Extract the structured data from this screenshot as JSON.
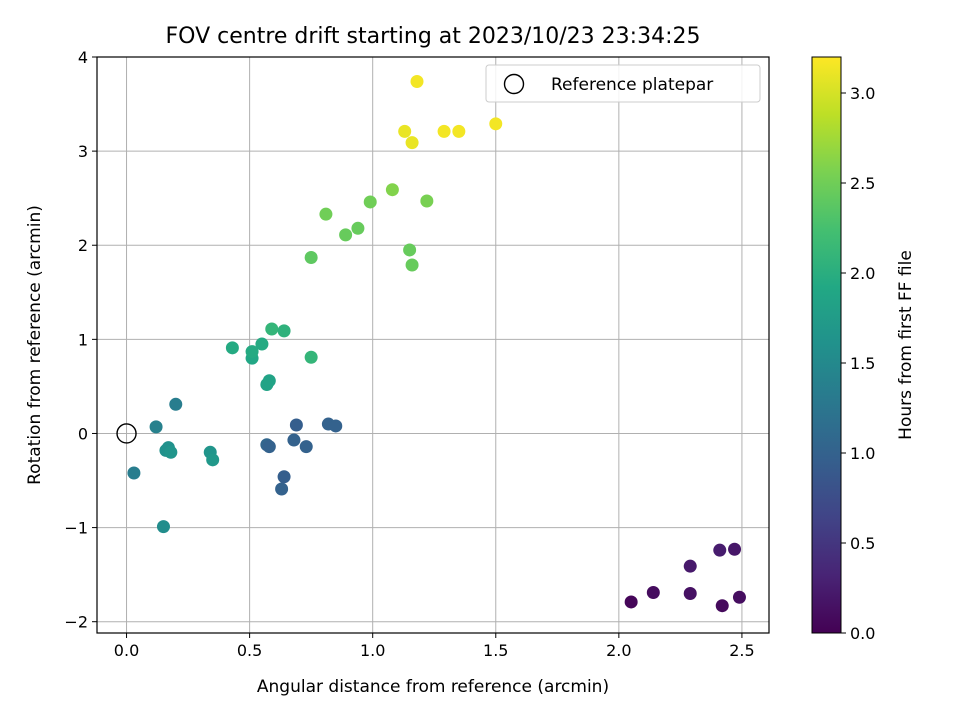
{
  "chart_data": {
    "type": "scatter",
    "title": "FOV centre drift starting at 2023/10/23 23:34:25",
    "xlabel": "Angular distance from reference (arcmin)",
    "ylabel": "Rotation from reference (arcmin)",
    "xlim": [
      -0.12,
      2.61
    ],
    "ylim": [
      -2.12,
      4.0
    ],
    "x_ticks": [
      0.0,
      0.5,
      1.0,
      1.5,
      2.0,
      2.5
    ],
    "x_tick_labels": [
      "0.0",
      "0.5",
      "1.0",
      "1.5",
      "2.0",
      "2.5"
    ],
    "y_ticks": [
      -2,
      -1,
      0,
      1,
      2,
      3,
      4
    ],
    "y_tick_labels": [
      "−2",
      "−1",
      "0",
      "1",
      "2",
      "3",
      "4"
    ],
    "grid": true,
    "legend": {
      "position": "top-right",
      "entries": [
        "Reference platepar"
      ]
    },
    "reference_point": {
      "x": 0.0,
      "y": 0.0
    },
    "colorbar": {
      "label": "Hours from first FF file",
      "range": [
        0.0,
        3.2
      ],
      "ticks": [
        0.0,
        0.5,
        1.0,
        1.5,
        2.0,
        2.5,
        3.0
      ],
      "tick_labels": [
        "0.0",
        "0.5",
        "1.0",
        "1.5",
        "2.0",
        "2.5",
        "3.0"
      ],
      "colormap": "viridis"
    },
    "points": [
      {
        "x": 2.05,
        "y": -1.79,
        "c": 0.05
      },
      {
        "x": 2.14,
        "y": -1.69,
        "c": 0.1
      },
      {
        "x": 2.29,
        "y": -1.7,
        "c": 0.15
      },
      {
        "x": 2.42,
        "y": -1.83,
        "c": 0.08
      },
      {
        "x": 2.49,
        "y": -1.74,
        "c": 0.12
      },
      {
        "x": 2.29,
        "y": -1.41,
        "c": 0.22
      },
      {
        "x": 2.41,
        "y": -1.24,
        "c": 0.25
      },
      {
        "x": 2.47,
        "y": -1.23,
        "c": 0.2
      },
      {
        "x": 0.63,
        "y": -0.59,
        "c": 1.0
      },
      {
        "x": 0.64,
        "y": -0.46,
        "c": 0.95
      },
      {
        "x": 0.57,
        "y": -0.12,
        "c": 1.05
      },
      {
        "x": 0.58,
        "y": -0.14,
        "c": 1.0
      },
      {
        "x": 0.68,
        "y": -0.07,
        "c": 1.0
      },
      {
        "x": 0.73,
        "y": -0.14,
        "c": 1.0
      },
      {
        "x": 0.69,
        "y": 0.09,
        "c": 0.95
      },
      {
        "x": 0.82,
        "y": 0.1,
        "c": 1.0
      },
      {
        "x": 0.85,
        "y": 0.08,
        "c": 1.0
      },
      {
        "x": 0.03,
        "y": -0.42,
        "c": 1.35
      },
      {
        "x": 0.12,
        "y": 0.07,
        "c": 1.4
      },
      {
        "x": 0.2,
        "y": 0.31,
        "c": 1.35
      },
      {
        "x": 0.16,
        "y": -0.18,
        "c": 1.6
      },
      {
        "x": 0.17,
        "y": -0.15,
        "c": 1.6
      },
      {
        "x": 0.18,
        "y": -0.2,
        "c": 1.65
      },
      {
        "x": 0.34,
        "y": -0.2,
        "c": 1.65
      },
      {
        "x": 0.35,
        "y": -0.28,
        "c": 1.7
      },
      {
        "x": 0.15,
        "y": -0.99,
        "c": 1.55
      },
      {
        "x": 0.57,
        "y": 0.52,
        "c": 1.85
      },
      {
        "x": 0.58,
        "y": 0.56,
        "c": 1.85
      },
      {
        "x": 0.51,
        "y": 0.8,
        "c": 1.9
      },
      {
        "x": 0.51,
        "y": 0.87,
        "c": 1.95
      },
      {
        "x": 0.43,
        "y": 0.91,
        "c": 1.95
      },
      {
        "x": 0.55,
        "y": 0.95,
        "c": 1.95
      },
      {
        "x": 0.59,
        "y": 1.11,
        "c": 2.1
      },
      {
        "x": 0.64,
        "y": 1.09,
        "c": 2.05
      },
      {
        "x": 0.75,
        "y": 0.81,
        "c": 2.1
      },
      {
        "x": 0.75,
        "y": 1.87,
        "c": 2.4
      },
      {
        "x": 0.81,
        "y": 2.33,
        "c": 2.5
      },
      {
        "x": 0.89,
        "y": 2.11,
        "c": 2.45
      },
      {
        "x": 0.94,
        "y": 2.18,
        "c": 2.45
      },
      {
        "x": 0.99,
        "y": 2.46,
        "c": 2.5
      },
      {
        "x": 1.08,
        "y": 2.59,
        "c": 2.6
      },
      {
        "x": 1.15,
        "y": 1.95,
        "c": 2.45
      },
      {
        "x": 1.16,
        "y": 1.79,
        "c": 2.45
      },
      {
        "x": 1.22,
        "y": 2.47,
        "c": 2.55
      },
      {
        "x": 1.13,
        "y": 3.21,
        "c": 3.1
      },
      {
        "x": 1.16,
        "y": 3.09,
        "c": 3.1
      },
      {
        "x": 1.18,
        "y": 3.74,
        "c": 3.15
      },
      {
        "x": 1.29,
        "y": 3.21,
        "c": 3.15
      },
      {
        "x": 1.35,
        "y": 3.21,
        "c": 3.15
      },
      {
        "x": 1.5,
        "y": 3.29,
        "c": 3.15
      }
    ]
  }
}
